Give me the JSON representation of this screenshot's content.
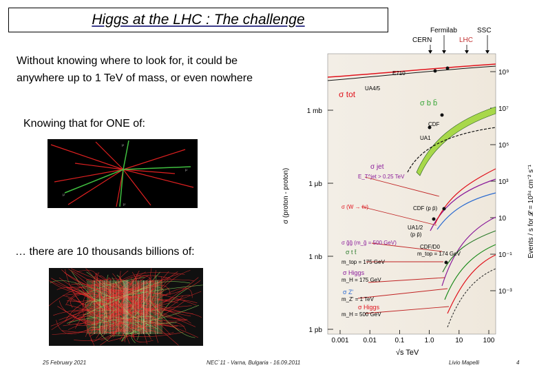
{
  "slide": {
    "title": "Higgs at the LHC : The challenge",
    "intro_line1": "Without knowing where to look for, it could be",
    "intro_line2": "anywhere up to 1 TeV of mass, or even nowhere",
    "knowing": "Knowing that for ONE of:",
    "there_are": "… there are 10 thousands billions of:"
  },
  "footer": {
    "date": "25 February 2021",
    "conference": "NEC`11 - Varna, Bulgaria - 16.09.2011",
    "author": "Livio Mapelli",
    "page": "4"
  },
  "chart_data": {
    "type": "line",
    "xlabel": "√s  TeV",
    "ylabel_left": "σ (proton - proton)",
    "ylabel_right": "Events / s  for 𝓛 = 10³⁴ cm⁻² s⁻¹",
    "x_ticks": [
      "0.001",
      "0.01",
      "0.1",
      "1.0",
      "10",
      "100"
    ],
    "left_ticks": [
      "1 mb",
      "1 μb",
      "1 nb",
      "1 pb"
    ],
    "right_ticks": [
      "10⁹",
      "10⁷",
      "10⁵",
      "10³",
      "10",
      "10⁻¹",
      "10⁻³"
    ],
    "accelerators": [
      "CERN",
      "Fermilab",
      "LHC",
      "SSC"
    ],
    "series": [
      {
        "name": "σ tot",
        "color": "#e0101a"
      },
      {
        "name": "σ b b̄",
        "color": "#35a535"
      },
      {
        "name": "σ jet  E_T^jet > 0.25 TeV",
        "color": "#8a1a9a"
      },
      {
        "name": "σ (W → ℓν)",
        "color": "#e0101a"
      },
      {
        "name": "σ gg  (m_g̃ = 500 GeV)",
        "color": "#8a1a9a"
      },
      {
        "name": "σ t t̄",
        "color": "#2a7a2a"
      },
      {
        "name": "σ Higgs",
        "color": "#e0101a"
      }
    ],
    "annotations": {
      "e710": "E710",
      "ua4": "UA4/5",
      "cdf": "CDF",
      "ua1": "UA1",
      "cdf_w": "CDF (p p̄)",
      "ua12": "UA1/2",
      "ua12b": "(p p̄)",
      "cdfd0": "CDF/D0",
      "mtop_obs": "m_top = 174 GeV",
      "sigma_jet": "σ jet",
      "et_jet": "E_T^jet > 0.25 TeV",
      "sigma_w": "σ (W → ℓν)",
      "sigma_gg": "σ g̃g̃ (m_g̃ = 500 GeV)",
      "sigma_tt": "σ t t̄",
      "mtop": "m_top = 175 GeV",
      "sigma_higgs_1": "σ Higgs",
      "mh_1": "m_H = 175 GeV",
      "sigma_z": "σ Z'",
      "mz": "m_Z' = 1 TeV",
      "sigma_higgs_2": "σ Higgs",
      "mh_2": "m_H = 500 GeV"
    }
  }
}
